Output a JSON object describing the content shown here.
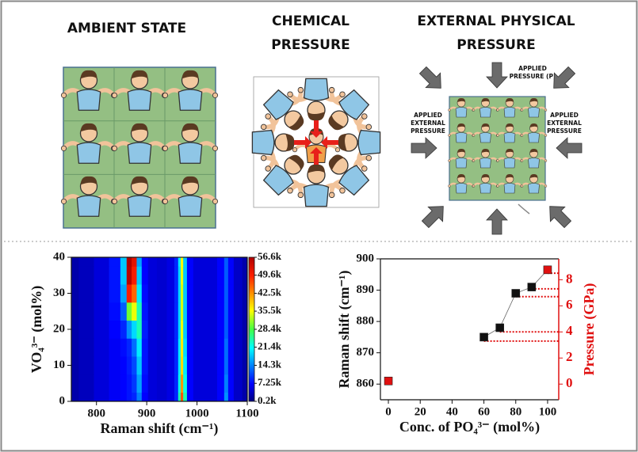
{
  "illustrations": [
    {
      "title": [
        "AMBIENT STATE"
      ]
    },
    {
      "title": [
        "CHEMICAL",
        "PRESSURE"
      ]
    },
    {
      "title": [
        "EXTERNAL PHYSICAL",
        "PRESSURE"
      ],
      "labels": [
        [
          "APPLIED",
          "PRESSURE (P)"
        ],
        [
          "APPLIED",
          "EXTERNAL",
          "PRESSURE"
        ],
        [
          "APPLIED",
          "EXTERNAL",
          "PRESSURE"
        ]
      ]
    }
  ],
  "chart_data": [
    {
      "type": "heatmap",
      "xlabel": "Raman shift (cm⁻¹)",
      "ylabel": "VO₄³⁻ (mol%)",
      "xlim": [
        750,
        1100
      ],
      "xticks": [
        800,
        900,
        1000,
        1100
      ],
      "ylim": [
        0,
        40
      ],
      "yticks": [
        0,
        10,
        20,
        30,
        40
      ],
      "x": [
        750,
        780,
        810,
        840,
        855,
        865,
        875,
        885,
        895,
        910,
        930,
        950,
        960,
        965,
        970,
        975,
        985,
        1000,
        1030,
        1050,
        1058,
        1066,
        1080,
        1100
      ],
      "y": [
        0,
        5,
        10,
        15,
        20,
        25,
        30,
        35,
        40
      ],
      "z": [
        [
          2500,
          3500,
          5000,
          6500,
          7000,
          8000,
          9000,
          14000,
          7000,
          5000,
          4500,
          5500,
          9000,
          24000,
          46000,
          24000,
          7000,
          5000,
          5000,
          7000,
          15000,
          7000,
          4000,
          2500
        ],
        [
          2500,
          3500,
          5000,
          6500,
          7000,
          8000,
          10000,
          16000,
          7500,
          5000,
          4500,
          5500,
          9000,
          22000,
          42000,
          22000,
          7000,
          5000,
          5000,
          7000,
          14000,
          7000,
          4000,
          2500
        ],
        [
          2500,
          3500,
          5000,
          6500,
          7000,
          8500,
          11000,
          18000,
          8000,
          5000,
          4500,
          5500,
          9000,
          20000,
          38000,
          20000,
          7000,
          5000,
          5000,
          7000,
          13000,
          7000,
          4000,
          2500
        ],
        [
          2500,
          3500,
          5000,
          6500,
          7500,
          9000,
          13000,
          20000,
          8000,
          5000,
          4500,
          5500,
          9000,
          20000,
          37000,
          19000,
          7000,
          5000,
          5000,
          7000,
          13000,
          7000,
          4000,
          2500
        ],
        [
          2500,
          3500,
          5000,
          7000,
          9000,
          15000,
          19000,
          24000,
          8500,
          5000,
          4500,
          5500,
          9000,
          19000,
          35000,
          18000,
          7000,
          5000,
          5000,
          7000,
          12000,
          7000,
          4000,
          2500
        ],
        [
          2500,
          3500,
          5000,
          7500,
          12000,
          30000,
          35000,
          24000,
          8000,
          5000,
          4500,
          5500,
          9000,
          19000,
          34000,
          18000,
          7000,
          5000,
          5000,
          7000,
          12000,
          7000,
          4000,
          2500
        ],
        [
          2500,
          3500,
          5000,
          8000,
          16000,
          50000,
          45000,
          20000,
          7500,
          5000,
          4500,
          5500,
          9000,
          19000,
          34000,
          18000,
          7000,
          5000,
          5000,
          7000,
          12000,
          7000,
          4000,
          2500
        ],
        [
          2500,
          3500,
          5000,
          8000,
          18000,
          56000,
          50000,
          18000,
          7000,
          5000,
          4500,
          5500,
          9000,
          19000,
          35000,
          18000,
          7000,
          5000,
          5000,
          7000,
          12000,
          7000,
          4000,
          2500
        ],
        [
          2500,
          3500,
          5000,
          8000,
          18000,
          56600,
          52000,
          16000,
          7000,
          5000,
          4500,
          5500,
          9000,
          20000,
          36000,
          18000,
          7000,
          5000,
          5000,
          7000,
          12000,
          7000,
          4000,
          2500
        ]
      ],
      "clim": [
        200,
        56600
      ],
      "colorbar_ticks": [
        {
          "value": 56600,
          "label": "56.6k"
        },
        {
          "value": 49600,
          "label": "49.6k"
        },
        {
          "value": 42500,
          "label": "42.5k"
        },
        {
          "value": 35500,
          "label": "35.5k"
        },
        {
          "value": 28400,
          "label": "28.4k"
        },
        {
          "value": 21400,
          "label": "21.4k"
        },
        {
          "value": 14300,
          "label": "14.3k"
        },
        {
          "value": 7250,
          "label": "7.25k"
        },
        {
          "value": 200,
          "label": "0.2k"
        }
      ]
    },
    {
      "type": "scatter",
      "xlabel": "Conc. of PO₄³⁻ (mol%)",
      "ylabel": "Raman shift (cm⁻¹)",
      "y2label": "Pressure (GPa)",
      "x": [
        0,
        60,
        70,
        80,
        90,
        100
      ],
      "xlim": [
        -5,
        107
      ],
      "xticks": [
        0,
        20,
        40,
        60,
        80,
        100
      ],
      "ylim": [
        855,
        900
      ],
      "yticks": [
        860,
        870,
        880,
        890,
        900
      ],
      "y2lim": [
        -1.2,
        9.6
      ],
      "y2ticks": [
        0,
        2,
        4,
        6,
        8
      ],
      "series": [
        {
          "values": [
            861,
            875,
            878,
            889,
            891,
            896.5
          ],
          "colors": [
            "#e01010",
            "#111111",
            "#111111",
            "#111111",
            "#111111",
            "#e01010"
          ]
        },
        {
          "values": [
            null,
            3.3,
            4.0,
            6.7,
            7.3,
            8.5
          ],
          "axis": "y2",
          "color": "#e01010"
        }
      ]
    }
  ]
}
